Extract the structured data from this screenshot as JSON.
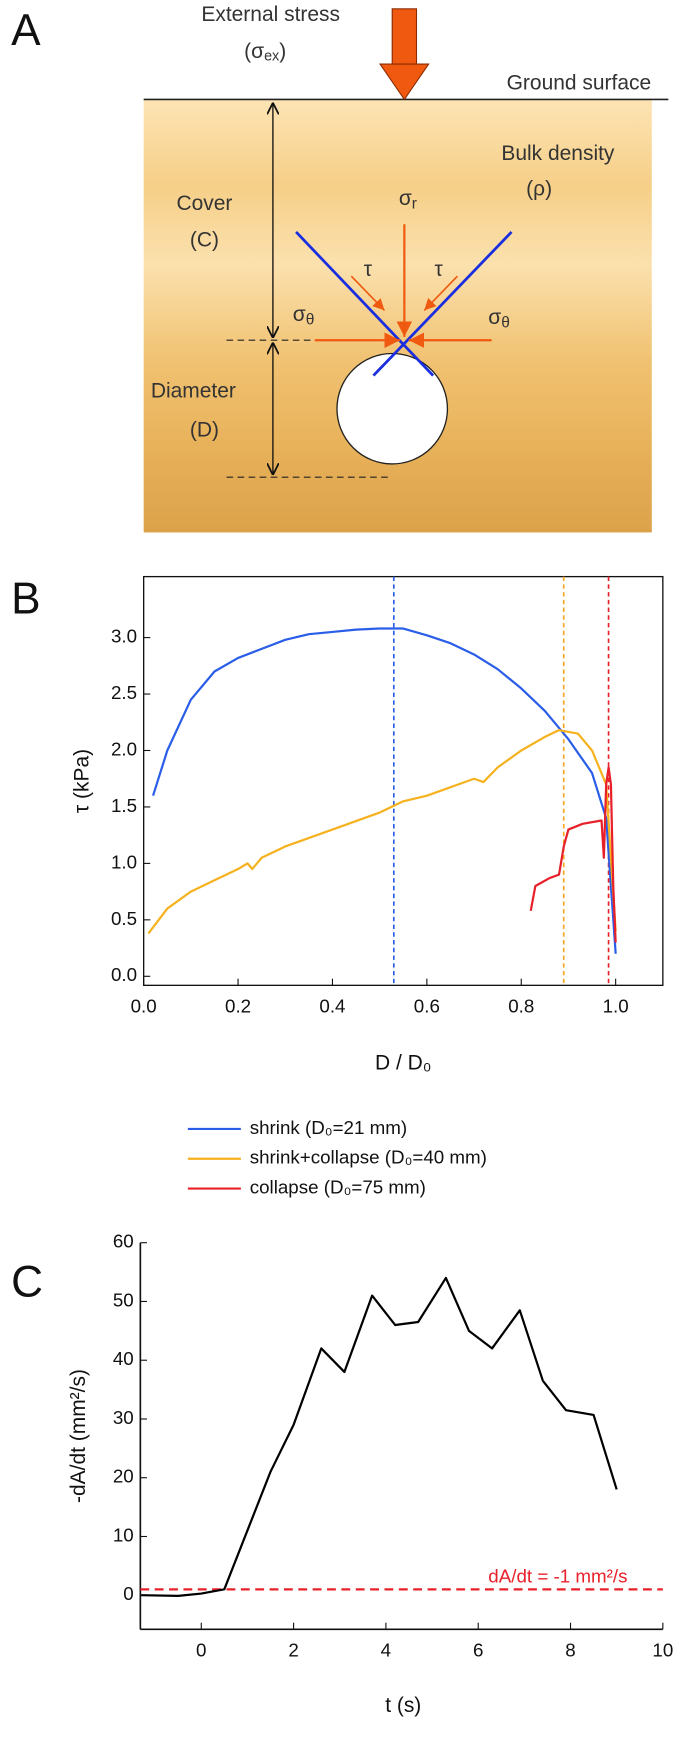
{
  "panel_labels": [
    "A",
    "B",
    "C"
  ],
  "diagram": {
    "external_stress": "External stress",
    "sigma_ex": [
      "(σ",
      "ex",
      ")"
    ],
    "ground_surface": "Ground surface",
    "bulk_density": "Bulk density",
    "rho": "(ρ)",
    "cover": "Cover",
    "cover_symbol": "(C)",
    "diameter": "Diameter",
    "diameter_symbol": "(D)",
    "sigma_r": [
      "σ",
      "r"
    ],
    "tau_left": "τ",
    "tau_right": "τ",
    "sigma_theta_left": [
      "σ",
      "θ"
    ],
    "sigma_theta_right": [
      "σ",
      "θ"
    ]
  },
  "chart_data": [
    {
      "type": "line",
      "x_label": "D / D₀",
      "y_label": "τ (kPa)",
      "xlim": [
        0,
        1.1
      ],
      "ylim": [
        -0.08,
        3.54
      ],
      "xticks": [
        {
          "value": 0,
          "label": "0.0"
        },
        0.2,
        0.4,
        0.6,
        0.8,
        {
          "value": 1,
          "label": "1.0"
        }
      ],
      "yticks": [
        {
          "value": 0,
          "label": "0.0"
        },
        0.5,
        {
          "value": 1,
          "label": "1.0"
        },
        1.5,
        {
          "value": 2,
          "label": "2.0"
        },
        2.5,
        {
          "value": 3,
          "label": "3.0"
        }
      ],
      "legend": "bottom",
      "vlines": [
        {
          "value": 0.53,
          "color": "#2a5ee8"
        },
        {
          "value": 0.89,
          "color": "#f5a623"
        },
        {
          "value": 0.985,
          "color": "#e8202a"
        }
      ],
      "series": [
        {
          "name": "shrink (D₀=21 mm)",
          "color": "#2a5ee8",
          "x": [
            0.02,
            0.05,
            0.1,
            0.15,
            0.2,
            0.25,
            0.3,
            0.35,
            0.4,
            0.45,
            0.5,
            0.55,
            0.6,
            0.65,
            0.7,
            0.75,
            0.8,
            0.85,
            0.9,
            0.95,
            0.98,
            1.0
          ],
          "values": [
            1.6,
            2.0,
            2.45,
            2.7,
            2.82,
            2.9,
            2.98,
            3.03,
            3.05,
            3.07,
            3.08,
            3.08,
            3.02,
            2.95,
            2.85,
            2.72,
            2.55,
            2.35,
            2.1,
            1.8,
            1.4,
            0.2
          ]
        },
        {
          "name": "shrink+collapse (D₀=40 mm)",
          "color": "#f5b21e",
          "x": [
            0.01,
            0.05,
            0.1,
            0.15,
            0.2,
            0.22,
            0.23,
            0.25,
            0.3,
            0.4,
            0.5,
            0.55,
            0.6,
            0.7,
            0.72,
            0.75,
            0.8,
            0.85,
            0.88,
            0.92,
            0.95,
            0.98,
            1.0
          ],
          "values": [
            0.38,
            0.6,
            0.75,
            0.85,
            0.95,
            1.0,
            0.95,
            1.05,
            1.15,
            1.3,
            1.45,
            1.55,
            1.6,
            1.75,
            1.72,
            1.85,
            2.0,
            2.12,
            2.18,
            2.15,
            2.0,
            1.7,
            0.4
          ]
        },
        {
          "name": "collapse (D₀=75 mm)",
          "color": "#e8202a",
          "x": [
            0.82,
            0.83,
            0.86,
            0.88,
            0.89,
            0.9,
            0.93,
            0.97,
            0.975,
            0.98,
            0.985,
            0.99,
            0.995,
            1.0
          ],
          "values": [
            0.58,
            0.8,
            0.87,
            0.9,
            1.15,
            1.3,
            1.35,
            1.38,
            1.05,
            1.7,
            1.85,
            1.7,
            0.8,
            0.3
          ]
        }
      ]
    },
    {
      "type": "line",
      "x_label": "t (s)",
      "y_label": "-dA/dt (mm²/s)",
      "xlim": [
        -1.32,
        10
      ],
      "ylim": [
        -5.8,
        60
      ],
      "xticks": [
        0,
        2,
        4,
        6,
        8,
        10
      ],
      "yticks": [
        0,
        10,
        20,
        30,
        40,
        50,
        60
      ],
      "hlines": [
        {
          "value": 1,
          "color": "#e8202a"
        }
      ],
      "annotation": "dA/dt = -1 mm²/s",
      "series": [
        {
          "color": "#000000",
          "x": [
            -1.3,
            -0.5,
            0,
            0.5,
            1,
            1.5,
            2,
            2.6,
            3.1,
            3.7,
            4.2,
            4.7,
            5.3,
            5.8,
            6.3,
            6.9,
            7.4,
            7.9,
            8.5,
            9
          ],
          "values": [
            0,
            -0.1,
            0.3,
            1,
            11,
            21,
            29,
            42,
            38,
            51,
            46,
            46.5,
            54,
            45,
            42,
            48.5,
            36.5,
            31.5,
            30.7,
            18
          ]
        }
      ]
    }
  ]
}
